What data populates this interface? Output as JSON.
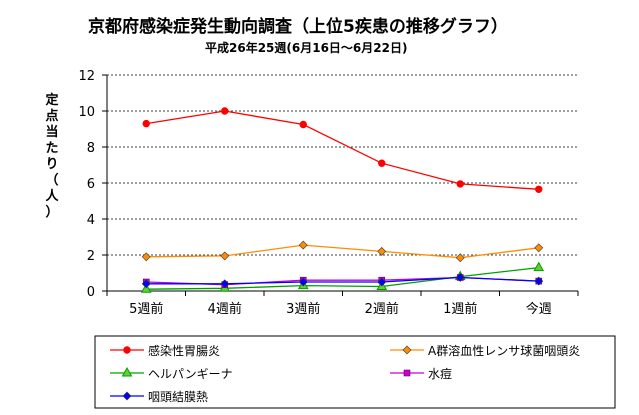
{
  "chart_data": {
    "type": "line",
    "title": "京都府感染症発生動向調査（上位5疾患の推移グラフ）",
    "subtitle": "平成26年25週(6月16日～6月22日)",
    "ylabel": "定点当たり（人）",
    "xlabel": "",
    "categories": [
      "5週前",
      "4週前",
      "3週前",
      "2週前",
      "1週前",
      "今週"
    ],
    "ylim": [
      0,
      12
    ],
    "yticks": [
      0,
      2,
      4,
      6,
      8,
      10,
      12
    ],
    "grid": "horizontal dashed",
    "legend_position": "bottom",
    "series": [
      {
        "name": "感染性胃腸炎",
        "color": "#ff0000",
        "marker": "circle",
        "values": [
          9.3,
          10.0,
          9.25,
          7.1,
          5.95,
          5.65
        ]
      },
      {
        "name": "A群溶血性レンサ球菌咽頭炎",
        "color": "#ff8c00",
        "marker": "diamond",
        "values": [
          1.9,
          1.95,
          2.55,
          2.2,
          1.85,
          2.4
        ]
      },
      {
        "name": "ヘルパンギーナ",
        "color": "#00a000",
        "marker": "triangle",
        "values": [
          0.1,
          0.15,
          0.3,
          0.25,
          0.8,
          1.3
        ]
      },
      {
        "name": "水痘",
        "color": "#cc00cc",
        "marker": "square",
        "values": [
          0.5,
          0.35,
          0.6,
          0.6,
          0.75,
          0.55
        ]
      },
      {
        "name": "咽頭結膜熱",
        "color": "#0000ff",
        "marker": "diamond",
        "values": [
          0.4,
          0.4,
          0.5,
          0.5,
          0.75,
          0.55
        ]
      }
    ]
  }
}
